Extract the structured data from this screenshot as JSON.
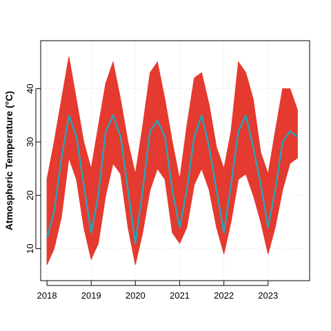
{
  "chart_data": {
    "type": "line",
    "title": "",
    "xlabel": "",
    "ylabel": "Atmospheric Temperature (°C)",
    "xlim": [
      "2017-11-10",
      "2023-12-10"
    ],
    "ylim": [
      4,
      49
    ],
    "x_ticks": [
      "2018",
      "2019",
      "2020",
      "2021",
      "2022",
      "2023"
    ],
    "y_ticks": [
      10,
      20,
      30,
      40
    ],
    "grid": true,
    "legend": "none",
    "colors": {
      "band": "#e53a2f",
      "line": "#2aa3b5",
      "grid": "#e6e6e6"
    },
    "x": [
      "2018-01",
      "2018-03",
      "2018-05",
      "2018-07",
      "2018-09",
      "2018-11",
      "2019-01",
      "2019-03",
      "2019-05",
      "2019-07",
      "2019-09",
      "2019-11",
      "2020-01",
      "2020-03",
      "2020-05",
      "2020-07",
      "2020-09",
      "2020-11",
      "2021-01",
      "2021-03",
      "2021-05",
      "2021-07",
      "2021-09",
      "2021-11",
      "2022-01",
      "2022-03",
      "2022-05",
      "2022-07",
      "2022-09",
      "2022-11",
      "2023-01",
      "2023-03",
      "2023-05",
      "2023-07",
      "2023-09"
    ],
    "series": [
      {
        "role": "band-min",
        "values": [
          7,
          10,
          16,
          27,
          23,
          14,
          8,
          11,
          20,
          26,
          24,
          14,
          7,
          13,
          21,
          25,
          23,
          13,
          11,
          14,
          22,
          25,
          21,
          14,
          9,
          15,
          23,
          24,
          20,
          15,
          9,
          14,
          21,
          26,
          27
        ]
      },
      {
        "role": "band-max",
        "values": [
          23,
          30,
          38,
          46,
          38,
          30,
          25,
          33,
          41,
          45,
          38,
          30,
          24,
          33,
          43,
          45,
          38,
          30,
          23,
          33,
          42,
          43,
          37,
          29,
          25,
          32,
          45,
          43,
          38,
          28,
          24,
          32,
          40,
          40,
          36
        ]
      },
      {
        "role": "mean",
        "values": [
          12,
          17,
          27,
          35,
          31,
          22,
          13,
          20,
          32,
          35,
          31,
          21,
          11,
          21,
          32,
          34,
          31,
          21,
          14,
          21,
          31,
          35,
          29,
          21,
          13,
          22,
          32,
          35,
          29,
          22,
          14,
          21,
          30,
          32,
          31
        ]
      }
    ]
  }
}
